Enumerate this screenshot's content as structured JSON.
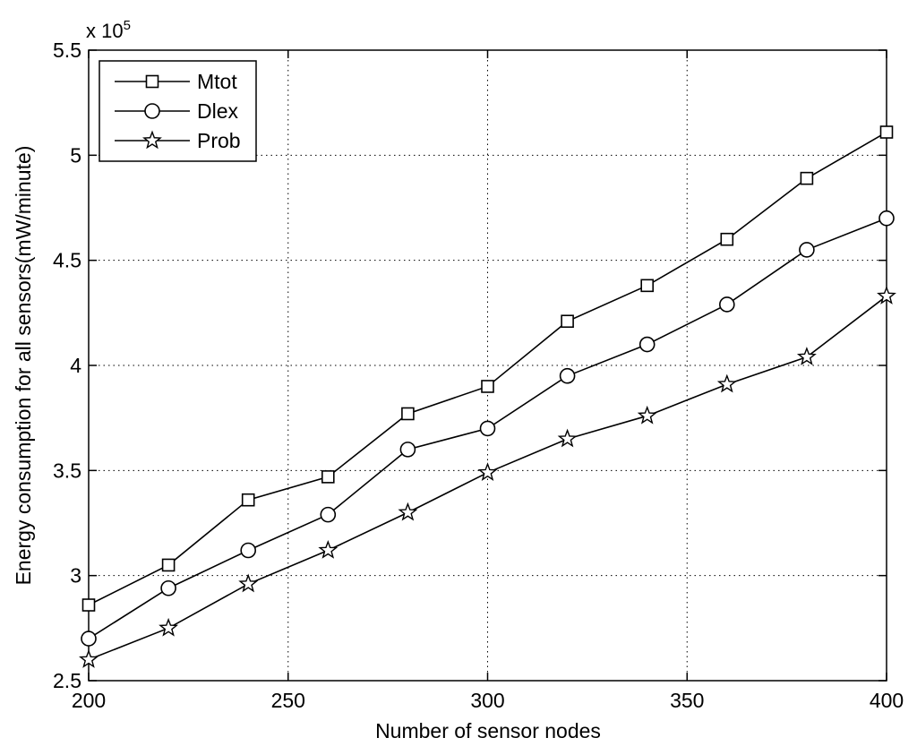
{
  "chart_data": {
    "type": "line",
    "title": "",
    "xlabel": "Number of sensor nodes",
    "ylabel": "Energy consumption for all sensors(mW/minute)",
    "y_exponent": {
      "base": "x 10",
      "power": "5"
    },
    "xlim": [
      200,
      400
    ],
    "ylim": [
      2.5,
      5.5
    ],
    "x_ticks": [
      200,
      250,
      300,
      350,
      400
    ],
    "y_ticks": [
      2.5,
      3,
      3.5,
      4,
      4.5,
      5,
      5.5
    ],
    "x_tick_labels": [
      "200",
      "250",
      "300",
      "350",
      "400"
    ],
    "y_tick_labels": [
      "2.5",
      "3",
      "3.5",
      "4",
      "4.5",
      "5",
      "5.5"
    ],
    "grid": true,
    "legend_position": "top-left",
    "x": [
      200,
      220,
      240,
      260,
      280,
      300,
      320,
      340,
      360,
      380,
      400
    ],
    "series": [
      {
        "name": "Mtot",
        "marker": "square",
        "values": [
          2.86,
          3.05,
          3.36,
          3.47,
          3.77,
          3.9,
          4.21,
          4.38,
          4.6,
          4.89,
          5.11
        ]
      },
      {
        "name": "Dlex",
        "marker": "circle",
        "values": [
          2.7,
          2.94,
          3.12,
          3.29,
          3.6,
          3.7,
          3.95,
          4.1,
          4.29,
          4.55,
          4.7
        ]
      },
      {
        "name": "Prob",
        "marker": "star",
        "values": [
          2.6,
          2.75,
          2.96,
          3.12,
          3.3,
          3.49,
          3.65,
          3.76,
          3.91,
          4.04,
          4.33
        ]
      }
    ]
  }
}
